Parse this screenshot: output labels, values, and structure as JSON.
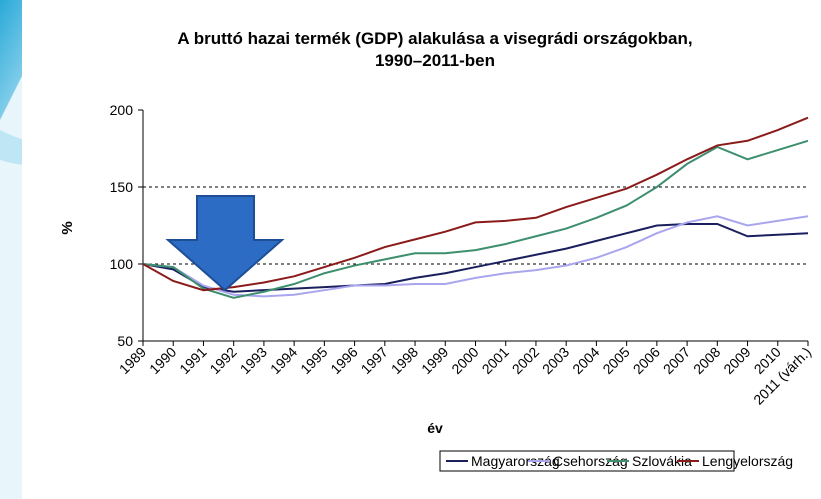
{
  "chart_data": {
    "type": "line",
    "title": [
      "A bruttó hazai termék (GDP) alakulása a visegrádi országokban,",
      "1990–2011-ben"
    ],
    "x_label": "év",
    "y_label": "%",
    "categories": [
      "1989",
      "1990",
      "1991",
      "1992",
      "1993",
      "1994",
      "1995",
      "1996",
      "1997",
      "1998",
      "1999",
      "2000",
      "2001",
      "2002",
      "2003",
      "2004",
      "2005",
      "2006",
      "2007",
      "2008",
      "2009",
      "2010",
      "2011 (várh.)"
    ],
    "series": [
      {
        "name": "Magyarország",
        "color": "#1a1f5e",
        "values": [
          100,
          96.5,
          85,
          82,
          83,
          84,
          85,
          86,
          87,
          91,
          94,
          98,
          102,
          106,
          110,
          115,
          120,
          125,
          126,
          126,
          118,
          119,
          120
        ]
      },
      {
        "name": "Csehország",
        "color": "#a9a6ee",
        "values": [
          100,
          98,
          86,
          80,
          79,
          80,
          83,
          86,
          86,
          87,
          87,
          91,
          94,
          96,
          99,
          104,
          111,
          120,
          127,
          131,
          125,
          128,
          131
        ]
      },
      {
        "name": "Szlovákia",
        "color": "#3d8f6e",
        "values": [
          100,
          98,
          84,
          78,
          82,
          87,
          94,
          99,
          103,
          107,
          107,
          109,
          113,
          118,
          123,
          130,
          138,
          150,
          165,
          176,
          168,
          174,
          180
        ]
      },
      {
        "name": "Lengyelország",
        "color": "#8b1a1a",
        "values": [
          100,
          89,
          83,
          85,
          88,
          92,
          98,
          104,
          111,
          116,
          121,
          127,
          128,
          130,
          137,
          143,
          149,
          158,
          168,
          177,
          180,
          187,
          195
        ]
      }
    ],
    "ylim": [
      50,
      200
    ],
    "yticks": [
      50,
      100,
      150,
      200
    ],
    "grid_dashed": [
      100,
      150
    ]
  }
}
